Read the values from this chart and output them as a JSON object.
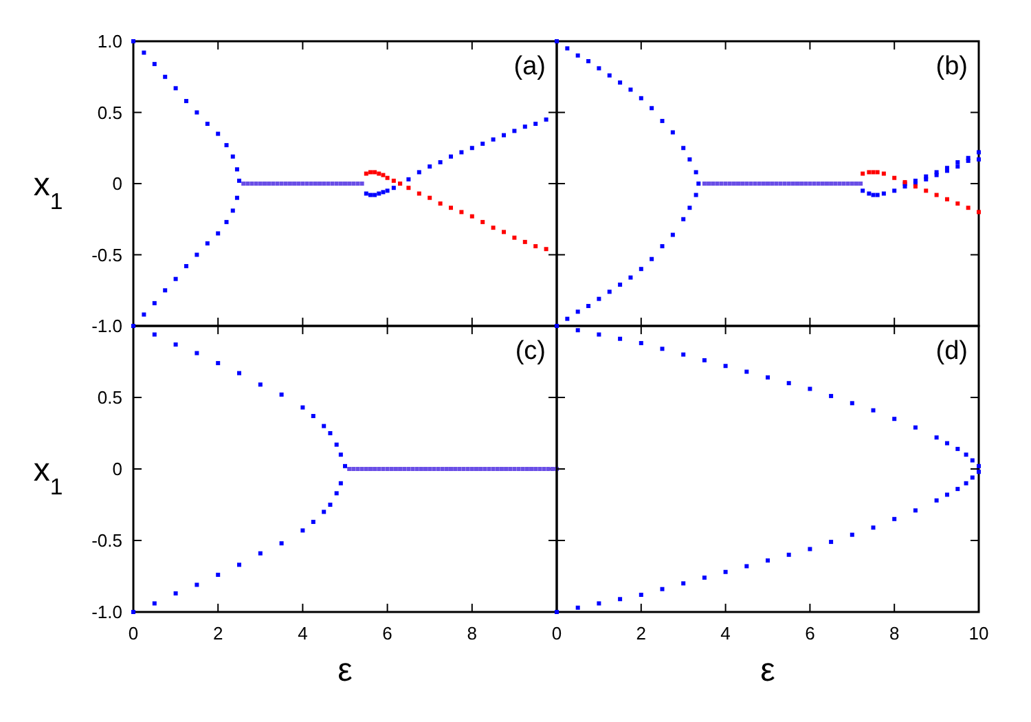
{
  "chart_data": [
    {
      "type": "scatter",
      "title": "(a)",
      "ylabel": "x$_{1}$",
      "xlim": [
        0,
        10
      ],
      "ylim": [
        -1,
        1
      ],
      "tick_labels": "y",
      "marker": "square",
      "xticks": [
        {
          "value": 0,
          "label": null
        },
        {
          "value": 2,
          "label": null
        },
        {
          "value": 4,
          "label": null
        },
        {
          "value": 6,
          "label": null
        },
        {
          "value": 8,
          "label": null
        },
        {
          "value": 10,
          "label": null
        }
      ],
      "yticks": [
        {
          "value": 1,
          "label": "1.0"
        },
        {
          "value": 0.5,
          "label": "0.5"
        },
        {
          "value": 0,
          "label": "0"
        },
        {
          "value": -0.5,
          "label": "-0.5"
        },
        {
          "value": -1,
          "label": "-1.0"
        }
      ],
      "series": [
        {
          "color": "#0000ff",
          "x": [
            0,
            0.25,
            0.5,
            0.75,
            1,
            1.25,
            1.5,
            1.75,
            2,
            2.2,
            2.35,
            2.45,
            2.5,
            0.25,
            0.5,
            0.75,
            1,
            1.25,
            1.5,
            1.75,
            2,
            2.2,
            2.35,
            2.45
          ],
          "values": [
            1,
            0.92,
            0.84,
            0.75,
            0.67,
            0.58,
            0.5,
            0.42,
            0.35,
            0.27,
            0.19,
            0.1,
            0.02,
            -0.92,
            -0.84,
            -0.75,
            -0.67,
            -0.58,
            -0.5,
            -0.42,
            -0.35,
            -0.27,
            -0.19,
            -0.1
          ]
        },
        {
          "color": "#6a4fe6",
          "x": [
            2.6,
            2.7,
            2.8,
            2.9,
            3,
            3.1,
            3.2,
            3.3,
            3.4,
            3.5,
            3.6,
            3.7,
            3.8,
            3.9,
            4,
            4.1,
            4.2,
            4.3,
            4.4,
            4.5,
            4.6,
            4.7,
            4.8,
            4.9,
            5,
            5.1,
            5.2,
            5.3,
            5.4
          ],
          "values": [
            0,
            0,
            0,
            0,
            0,
            0,
            0,
            0,
            0,
            0,
            0,
            0,
            0,
            0,
            0,
            0,
            0,
            0,
            0,
            0,
            0,
            0,
            0,
            0,
            0,
            0,
            0,
            0,
            0
          ]
        },
        {
          "color": "#0000ff",
          "x": [
            5.5,
            5.6,
            5.7,
            5.8,
            5.9,
            6,
            6.15,
            6.3,
            6.5,
            6.75,
            7,
            7.25,
            7.5,
            7.75,
            8,
            8.25,
            8.5,
            8.75,
            9,
            9.25,
            9.5,
            9.75
          ],
          "values": [
            -0.07,
            -0.08,
            -0.08,
            -0.07,
            -0.06,
            -0.05,
            -0.03,
            0,
            0.03,
            0.08,
            0.12,
            0.15,
            0.19,
            0.22,
            0.25,
            0.28,
            0.31,
            0.34,
            0.37,
            0.4,
            0.42,
            0.45
          ]
        },
        {
          "color": "#ff0000",
          "x": [
            5.5,
            5.6,
            5.7,
            5.8,
            5.9,
            6,
            6.15,
            6.3,
            6.5,
            6.75,
            7,
            7.25,
            7.5,
            7.75,
            8,
            8.25,
            8.5,
            8.75,
            9,
            9.25,
            9.5,
            9.75
          ],
          "values": [
            0.07,
            0.08,
            0.08,
            0.07,
            0.06,
            0.04,
            0.02,
            0,
            -0.03,
            -0.07,
            -0.1,
            -0.14,
            -0.17,
            -0.2,
            -0.23,
            -0.27,
            -0.31,
            -0.34,
            -0.38,
            -0.41,
            -0.44,
            -0.46
          ]
        }
      ]
    },
    {
      "type": "scatter",
      "title": "(b)",
      "xlim": [
        0,
        10
      ],
      "ylim": [
        -1,
        1
      ],
      "tick_labels": false,
      "marker": "square",
      "xticks": [
        {
          "value": 0,
          "label": null
        },
        {
          "value": 2,
          "label": null
        },
        {
          "value": 4,
          "label": null
        },
        {
          "value": 6,
          "label": null
        },
        {
          "value": 8,
          "label": null
        },
        {
          "value": 10,
          "label": null
        }
      ],
      "yticks": [
        {
          "value": 1,
          "label": null
        },
        {
          "value": 0.5,
          "label": null
        },
        {
          "value": 0,
          "label": null
        },
        {
          "value": -0.5,
          "label": null
        },
        {
          "value": -1,
          "label": null
        }
      ],
      "series": [
        {
          "color": "#0000ff",
          "x": [
            0,
            0.25,
            0.5,
            0.75,
            1,
            1.25,
            1.5,
            1.75,
            2,
            2.25,
            2.5,
            2.75,
            3,
            3.15,
            3.3,
            3.36,
            0.25,
            0.5,
            0.75,
            1,
            1.25,
            1.5,
            1.75,
            2,
            2.25,
            2.5,
            2.75,
            3,
            3.15,
            3.3
          ],
          "values": [
            1,
            0.95,
            0.9,
            0.86,
            0.81,
            0.76,
            0.71,
            0.66,
            0.6,
            0.53,
            0.44,
            0.36,
            0.25,
            0.17,
            0.08,
            0,
            -0.95,
            -0.9,
            -0.86,
            -0.81,
            -0.76,
            -0.71,
            -0.66,
            -0.6,
            -0.53,
            -0.44,
            -0.36,
            -0.25,
            -0.17,
            -0.08
          ]
        },
        {
          "color": "#6a4fe6",
          "x": [
            3.5,
            3.6,
            3.7,
            3.8,
            3.9,
            4,
            4.1,
            4.2,
            4.3,
            4.4,
            4.5,
            4.6,
            4.7,
            4.8,
            4.9,
            5,
            5.1,
            5.2,
            5.3,
            5.4,
            5.5,
            5.6,
            5.7,
            5.8,
            5.9,
            6,
            6.1,
            6.2,
            6.3,
            6.4,
            6.5,
            6.6,
            6.7,
            6.8,
            6.9,
            7,
            7.1,
            7.2
          ],
          "values": [
            0,
            0,
            0,
            0,
            0,
            0,
            0,
            0,
            0,
            0,
            0,
            0,
            0,
            0,
            0,
            0,
            0,
            0,
            0,
            0,
            0,
            0,
            0,
            0,
            0,
            0,
            0,
            0,
            0,
            0,
            0,
            0,
            0,
            0,
            0,
            0,
            0,
            0
          ]
        },
        {
          "color": "#0000ff",
          "x": [
            7.25,
            7.4,
            7.5,
            7.6,
            7.75,
            8,
            8.25,
            8.5,
            8.75,
            9,
            9.25,
            9.5,
            9.75,
            10,
            8.25,
            8.5,
            8.75,
            9,
            9.25,
            9.5,
            9.75,
            10
          ],
          "values": [
            -0.05,
            -0.07,
            -0.08,
            -0.08,
            -0.07,
            -0.05,
            -0.02,
            0,
            0.03,
            0.06,
            0.09,
            0.12,
            0.16,
            0.17,
            0,
            0.02,
            0.05,
            0.08,
            0.11,
            0.15,
            0.18,
            0.22
          ]
        },
        {
          "color": "#ff0000",
          "x": [
            7.25,
            7.4,
            7.5,
            7.6,
            7.75,
            8,
            8.25,
            8.5,
            8.75,
            9,
            9.25,
            9.5,
            9.75,
            10
          ],
          "values": [
            0.07,
            0.08,
            0.08,
            0.08,
            0.07,
            0.04,
            0.01,
            -0.02,
            -0.05,
            -0.08,
            -0.11,
            -0.14,
            -0.17,
            -0.2
          ]
        }
      ]
    },
    {
      "type": "scatter",
      "title": "(c)",
      "xlabel": "ε",
      "ylabel": "x$_{1}$",
      "xlim": [
        0,
        10
      ],
      "ylim": [
        -1,
        1
      ],
      "marker": "square",
      "xticks": [
        {
          "value": 0,
          "label": "0"
        },
        {
          "value": 2,
          "label": "2"
        },
        {
          "value": 4,
          "label": "4"
        },
        {
          "value": 6,
          "label": "6"
        },
        {
          "value": 8,
          "label": "8"
        },
        {
          "value": 10,
          "label": null
        }
      ],
      "yticks": [
        {
          "value": 1,
          "label": null
        },
        {
          "value": 0.5,
          "label": "0.5"
        },
        {
          "value": 0,
          "label": "0"
        },
        {
          "value": -0.5,
          "label": "-0.5"
        },
        {
          "value": -1,
          "label": "-1.0"
        }
      ],
      "series": [
        {
          "color": "#0000ff",
          "x": [
            0,
            0.5,
            1,
            1.5,
            2,
            2.5,
            3,
            3.5,
            4,
            4.25,
            4.5,
            4.65,
            4.8,
            4.9,
            5,
            0,
            0.5,
            1,
            1.5,
            2,
            2.5,
            3,
            3.5,
            4,
            4.25,
            4.5,
            4.65,
            4.8,
            4.9
          ],
          "values": [
            1,
            0.94,
            0.87,
            0.81,
            0.74,
            0.67,
            0.59,
            0.52,
            0.43,
            0.37,
            0.3,
            0.25,
            0.17,
            0.1,
            0.02,
            -1,
            -0.94,
            -0.87,
            -0.81,
            -0.74,
            -0.67,
            -0.59,
            -0.52,
            -0.43,
            -0.37,
            -0.3,
            -0.25,
            -0.17,
            -0.1
          ]
        },
        {
          "color": "#6a4fe6",
          "x": [
            5.1,
            5.2,
            5.3,
            5.4,
            5.5,
            5.6,
            5.7,
            5.8,
            5.9,
            6,
            6.1,
            6.2,
            6.3,
            6.4,
            6.5,
            6.6,
            6.7,
            6.8,
            6.9,
            7,
            7.1,
            7.2,
            7.3,
            7.4,
            7.5,
            7.6,
            7.7,
            7.8,
            7.9,
            8,
            8.1,
            8.2,
            8.3,
            8.4,
            8.5,
            8.6,
            8.7,
            8.8,
            8.9,
            9,
            9.1,
            9.2,
            9.3,
            9.4,
            9.5,
            9.6,
            9.7,
            9.8,
            9.9,
            10
          ],
          "values": [
            0,
            0,
            0,
            0,
            0,
            0,
            0,
            0,
            0,
            0,
            0,
            0,
            0,
            0,
            0,
            0,
            0,
            0,
            0,
            0,
            0,
            0,
            0,
            0,
            0,
            0,
            0,
            0,
            0,
            0,
            0,
            0,
            0,
            0,
            0,
            0,
            0,
            0,
            0,
            0,
            0,
            0,
            0,
            0,
            0,
            0,
            0,
            0,
            0,
            0
          ]
        }
      ]
    },
    {
      "type": "scatter",
      "title": "(d)",
      "xlabel": "ε",
      "xlim": [
        0,
        10
      ],
      "ylim": [
        -1,
        1
      ],
      "tick_labels": "x",
      "marker": "square",
      "xticks": [
        {
          "value": 0,
          "label": "0"
        },
        {
          "value": 2,
          "label": "2"
        },
        {
          "value": 4,
          "label": "4"
        },
        {
          "value": 6,
          "label": "6"
        },
        {
          "value": 8,
          "label": "8"
        },
        {
          "value": 10,
          "label": "10"
        }
      ],
      "yticks": [
        {
          "value": 1,
          "label": null
        },
        {
          "value": 0.5,
          "label": null
        },
        {
          "value": 0,
          "label": null
        },
        {
          "value": -0.5,
          "label": null
        },
        {
          "value": -1,
          "label": null
        }
      ],
      "series": [
        {
          "color": "#0000ff",
          "x": [
            0,
            0.5,
            1,
            1.5,
            2,
            2.5,
            3,
            3.5,
            4,
            4.5,
            5,
            5.5,
            6,
            6.5,
            7,
            7.5,
            8,
            8.5,
            9,
            9.25,
            9.5,
            9.7,
            9.85,
            10,
            0,
            0.5,
            1,
            1.5,
            2,
            2.5,
            3,
            3.5,
            4,
            4.5,
            5,
            5.5,
            6,
            6.5,
            7,
            7.5,
            8,
            8.5,
            9,
            9.25,
            9.5,
            9.7,
            9.85,
            10
          ],
          "values": [
            1,
            0.97,
            0.94,
            0.91,
            0.88,
            0.84,
            0.8,
            0.76,
            0.72,
            0.68,
            0.64,
            0.6,
            0.56,
            0.51,
            0.46,
            0.41,
            0.35,
            0.29,
            0.22,
            0.18,
            0.14,
            0.1,
            0.06,
            0.02,
            -1,
            -0.97,
            -0.94,
            -0.91,
            -0.88,
            -0.84,
            -0.8,
            -0.76,
            -0.72,
            -0.68,
            -0.64,
            -0.6,
            -0.56,
            -0.51,
            -0.46,
            -0.41,
            -0.35,
            -0.29,
            -0.22,
            -0.18,
            -0.14,
            -0.1,
            -0.06,
            -0.02
          ]
        }
      ]
    }
  ]
}
